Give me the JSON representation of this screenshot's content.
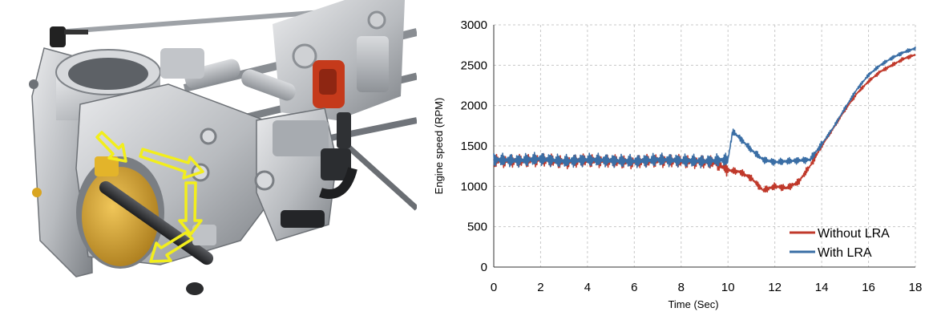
{
  "photo": {
    "subject": "throttle-body-assembly",
    "arrow_color": "#f2ee1c",
    "body_color": "#b9bcbf",
    "valve_color": "#d9a520",
    "accent_color": "#c53a1b"
  },
  "chart_data": {
    "type": "line",
    "title": "",
    "xlabel": "Time (Sec)",
    "ylabel": "Engine speed (RPM)",
    "xlim": [
      0,
      18
    ],
    "ylim": [
      0,
      3000
    ],
    "xticks": [
      0,
      2,
      4,
      6,
      8,
      10,
      12,
      14,
      16,
      18
    ],
    "yticks": [
      0,
      500,
      1000,
      1500,
      2000,
      2500,
      3000
    ],
    "grid": true,
    "legend_position": "bottom-right",
    "series": [
      {
        "name": "Without LRA",
        "color": "#c0392b",
        "x": [
          0,
          1,
          2,
          3,
          4,
          5,
          6,
          7,
          8,
          9,
          9.5,
          10,
          10.5,
          11,
          11.5,
          12,
          12.5,
          13,
          13.5,
          14,
          14.5,
          15,
          15.5,
          16,
          16.5,
          17,
          17.5,
          18
        ],
        "y": [
          1320,
          1310,
          1330,
          1300,
          1320,
          1310,
          1300,
          1320,
          1310,
          1300,
          1290,
          1200,
          1180,
          1100,
          950,
          1000,
          980,
          1050,
          1250,
          1500,
          1720,
          1950,
          2150,
          2300,
          2420,
          2500,
          2580,
          2630
        ]
      },
      {
        "name": "With LRA",
        "color": "#3a6ea5",
        "x": [
          0,
          1,
          2,
          3,
          4,
          5,
          6,
          7,
          8,
          9,
          9.5,
          10,
          10.2,
          10.5,
          11,
          11.5,
          12,
          12.5,
          13,
          13.5,
          14,
          14.5,
          15,
          15.5,
          16,
          16.5,
          17,
          17.5,
          18
        ],
        "y": [
          1330,
          1320,
          1340,
          1310,
          1330,
          1320,
          1310,
          1330,
          1320,
          1310,
          1320,
          1330,
          1680,
          1600,
          1450,
          1330,
          1300,
          1310,
          1320,
          1330,
          1520,
          1730,
          1970,
          2200,
          2380,
          2500,
          2590,
          2660,
          2710
        ]
      }
    ]
  }
}
